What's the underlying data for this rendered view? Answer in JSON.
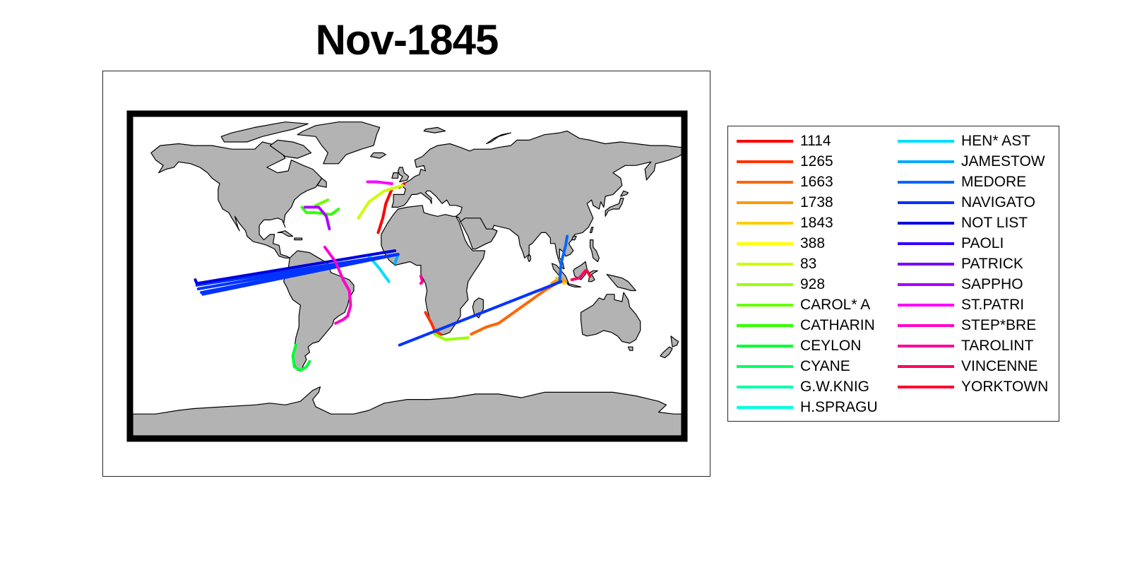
{
  "title": "Nov-1845",
  "colors": {
    "land": "#b3b3b3",
    "coast": "#000000",
    "frame": "#000000",
    "background": "#ffffff"
  },
  "legend": [
    {
      "label": "1114",
      "color": "#ff0000"
    },
    {
      "label": "1265",
      "color": "#ff3300"
    },
    {
      "label": "1663",
      "color": "#ff6600"
    },
    {
      "label": "1738",
      "color": "#ff9900"
    },
    {
      "label": "1843",
      "color": "#ffcc00"
    },
    {
      "label": "388",
      "color": "#ffff00"
    },
    {
      "label": "83",
      "color": "#ccff00"
    },
    {
      "label": "928",
      "color": "#99ff00"
    },
    {
      "label": "CAROL* A",
      "color": "#66ff00"
    },
    {
      "label": "CATHARIN",
      "color": "#33ff00"
    },
    {
      "label": "CEYLON",
      "color": "#00ff33"
    },
    {
      "label": "CYANE",
      "color": "#00ff66"
    },
    {
      "label": "G.W.KNIG",
      "color": "#00ffaa"
    },
    {
      "label": "H.SPRAGU",
      "color": "#00ffdd"
    },
    {
      "label": "HEN* AST",
      "color": "#00ddff"
    },
    {
      "label": "JAMESTOW",
      "color": "#00aaff"
    },
    {
      "label": "MEDORE",
      "color": "#0066ff"
    },
    {
      "label": "NAVIGATO",
      "color": "#0033ff"
    },
    {
      "label": "NOT LIST",
      "color": "#0000dd"
    },
    {
      "label": "PAOLI",
      "color": "#3300ff"
    },
    {
      "label": "PATRICK",
      "color": "#7700ff"
    },
    {
      "label": "SAPPHO",
      "color": "#aa00ff"
    },
    {
      "label": "ST.PATRI",
      "color": "#ff00ff"
    },
    {
      "label": "STEP*BRE",
      "color": "#ff00cc"
    },
    {
      "label": "TAROLINT",
      "color": "#ff0099"
    },
    {
      "label": "VINCENNE",
      "color": "#ff0066"
    },
    {
      "label": "YORKTOWN",
      "color": "#ff0033"
    }
  ],
  "tracks": [
    {
      "name": "1114",
      "color": "#ff0000",
      "points": [
        [
          -10,
          46
        ],
        [
          -14,
          38
        ],
        [
          -16,
          30
        ],
        [
          -19,
          22
        ]
      ]
    },
    {
      "name": "1114",
      "color": "#ff0000",
      "points": [
        [
          -5,
          47
        ],
        [
          -2,
          49
        ]
      ]
    },
    {
      "name": "1265",
      "color": "#ff3300",
      "points": [
        [
          12,
          -22
        ],
        [
          16,
          -28
        ],
        [
          18,
          -32
        ],
        [
          22,
          -34
        ]
      ]
    },
    {
      "name": "1663",
      "color": "#ff6600",
      "points": [
        [
          42,
          -34
        ],
        [
          52,
          -30
        ],
        [
          60,
          -28
        ],
        [
          70,
          -22
        ],
        [
          80,
          -16
        ],
        [
          90,
          -10
        ],
        [
          100,
          -5
        ]
      ]
    },
    {
      "name": "1738",
      "color": "#ff9900",
      "points": [
        [
          95,
          -6
        ],
        [
          100,
          -3
        ],
        [
          104,
          -5
        ]
      ]
    },
    {
      "name": "1843",
      "color": "#ffcc00",
      "points": [
        [
          98,
          -3
        ],
        [
          103,
          -6
        ]
      ]
    },
    {
      "name": "83",
      "color": "#ccff00",
      "points": [
        [
          -3,
          48
        ],
        [
          -15,
          45
        ],
        [
          -25,
          39
        ],
        [
          -32,
          30
        ]
      ]
    },
    {
      "name": "928",
      "color": "#99ff00",
      "points": [
        [
          18,
          -34
        ],
        [
          25,
          -37
        ],
        [
          40,
          -36
        ]
      ]
    },
    {
      "name": "CAROL* A",
      "color": "#66ff00",
      "points": [
        [
          -52,
          40
        ],
        [
          -60,
          37
        ]
      ]
    },
    {
      "name": "CATHARIN",
      "color": "#33ff00",
      "points": [
        [
          -69,
          36
        ],
        [
          -66,
          33
        ],
        [
          -60,
          33
        ],
        [
          -50,
          32
        ],
        [
          -45,
          35
        ]
      ]
    },
    {
      "name": "CEYLON",
      "color": "#00ff33",
      "points": [
        [
          -73,
          -40
        ],
        [
          -75,
          -46
        ],
        [
          -74,
          -52
        ],
        [
          -70,
          -54
        ],
        [
          -66,
          -52
        ],
        [
          -64,
          -49
        ]
      ]
    },
    {
      "name": "HEN* AST",
      "color": "#00ddff",
      "points": [
        [
          -25,
          9
        ],
        [
          -18,
          2
        ],
        [
          -12,
          -5
        ]
      ]
    },
    {
      "name": "JAMESTOW",
      "color": "#00aaff",
      "points": [
        [
          -8,
          5
        ],
        [
          -6,
          10
        ]
      ]
    },
    {
      "name": "MEDORE",
      "color": "#0066ff",
      "points": [
        [
          100,
          -5
        ],
        [
          101,
          5
        ],
        [
          104,
          15
        ],
        [
          105,
          20
        ]
      ]
    },
    {
      "name": "NAVIGATO",
      "color": "#0033ff",
      "points": [
        [
          -6,
          10
        ],
        [
          -138,
          -7
        ]
      ]
    },
    {
      "name": "NAVIGATO",
      "color": "#0033ff",
      "points": [
        [
          -6,
          10
        ],
        [
          -137,
          -9
        ]
      ]
    },
    {
      "name": "NAVIGATO",
      "color": "#0033ff",
      "points": [
        [
          -6,
          10
        ],
        [
          -135,
          -11
        ]
      ]
    },
    {
      "name": "NAVIGATO",
      "color": "#0033ff",
      "points": [
        [
          -6,
          10
        ],
        [
          -134,
          -12
        ]
      ]
    },
    {
      "name": "NAVIGATO",
      "color": "#0033ff",
      "points": [
        [
          101,
          -5
        ],
        [
          -5,
          -40
        ]
      ]
    },
    {
      "name": "NOT LIST",
      "color": "#0000dd",
      "points": [
        [
          -8,
          12
        ],
        [
          -138,
          -6
        ],
        [
          -139,
          -4
        ]
      ]
    },
    {
      "name": "SAPPHO",
      "color": "#aa00ff",
      "points": [
        [
          -67,
          36
        ],
        [
          -58,
          36
        ],
        [
          -53,
          31
        ],
        [
          -51,
          24
        ]
      ]
    },
    {
      "name": "ST.PATRI",
      "color": "#ff00ff",
      "points": [
        [
          -10,
          49
        ],
        [
          -20,
          50
        ],
        [
          -26,
          50
        ]
      ]
    },
    {
      "name": "STEP*BRE",
      "color": "#ff00cc",
      "points": [
        [
          -54,
          14
        ],
        [
          -47,
          6
        ],
        [
          -42,
          -4
        ],
        [
          -38,
          -10
        ],
        [
          -37,
          -18
        ],
        [
          -39,
          -24
        ],
        [
          -42,
          -26
        ],
        [
          -47,
          -28
        ]
      ]
    },
    {
      "name": "TAROLINT",
      "color": "#ff0099",
      "points": [
        [
          9,
          -2
        ],
        [
          10,
          -5
        ],
        [
          9,
          -6
        ]
      ]
    },
    {
      "name": "VINCENNE",
      "color": "#ff0066",
      "points": [
        [
          108,
          -4
        ],
        [
          113,
          -3
        ],
        [
          117,
          1
        ]
      ]
    },
    {
      "name": "YORKTOWN",
      "color": "#ff0033",
      "points": [
        [
          118,
          1
        ],
        [
          120,
          -2
        ]
      ]
    }
  ]
}
